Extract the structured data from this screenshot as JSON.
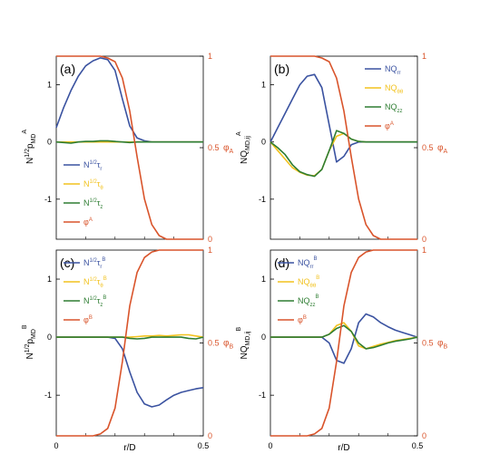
{
  "colors": {
    "s1": "#3a52a0",
    "s2": "#f2c21e",
    "s3": "#2e7d32",
    "s4": "#d9542b"
  },
  "chart_data": [
    {
      "panel": "(a)",
      "type": "line",
      "ylabel": "N1/2pMDA",
      "y2label": "φA",
      "xlabel": "",
      "xlim": [
        0,
        0.5
      ],
      "ylim": [
        -1.7,
        1.5
      ],
      "y2lim": [
        0,
        1
      ],
      "yticks": [
        "1",
        "0",
        "-1"
      ],
      "y2ticks": [
        "1",
        "0.5",
        "0"
      ],
      "xticks": [],
      "legend": [
        "N1/2τr",
        "N1/2τθ",
        "N1/2τz",
        "φA"
      ],
      "legend_position": "bottom-left",
      "x": [
        0,
        0.025,
        0.05,
        0.075,
        0.1,
        0.125,
        0.15,
        0.175,
        0.2,
        0.225,
        0.25,
        0.275,
        0.3,
        0.325,
        0.35,
        0.375,
        0.4,
        0.425,
        0.45,
        0.475,
        0.5
      ],
      "series": [
        {
          "name": "N1/2τr",
          "color": "s1",
          "axis": "left",
          "values": [
            0.25,
            0.6,
            0.9,
            1.15,
            1.33,
            1.42,
            1.47,
            1.44,
            1.25,
            0.75,
            0.28,
            0.07,
            0.02,
            0.0,
            0.0,
            0.0,
            0.0,
            0.0,
            0.0,
            0.0,
            0.0
          ]
        },
        {
          "name": "N1/2τθ",
          "color": "s2",
          "axis": "left",
          "values": [
            0,
            0,
            0,
            0,
            0,
            0,
            0,
            0,
            0,
            0,
            0,
            0,
            0,
            0,
            0,
            0,
            0,
            0,
            0,
            0,
            0
          ]
        },
        {
          "name": "N1/2τz",
          "color": "s3",
          "axis": "left",
          "values": [
            0,
            -0.01,
            -0.02,
            0.0,
            0.01,
            0.01,
            0.02,
            0.02,
            0.01,
            0.0,
            -0.01,
            0.0,
            0.0,
            0.0,
            0.0,
            0.0,
            0.0,
            0.0,
            0.0,
            0.0,
            0.0
          ]
        },
        {
          "name": "φA",
          "color": "s4",
          "axis": "right",
          "values": [
            1,
            1,
            1,
            1,
            1,
            1,
            1,
            0.99,
            0.97,
            0.88,
            0.7,
            0.45,
            0.22,
            0.08,
            0.02,
            0.0,
            0.0,
            0.0,
            0.0,
            0.0,
            0.0
          ]
        }
      ]
    },
    {
      "panel": "(b)",
      "type": "line",
      "ylabel": "NQMD,ijA",
      "y2label": "φA",
      "xlabel": "",
      "xlim": [
        0,
        0.5
      ],
      "ylim": [
        -1.7,
        1.5
      ],
      "y2lim": [
        0,
        1
      ],
      "yticks": [
        "1",
        "0",
        "-1"
      ],
      "y2ticks": [
        "1",
        "0.5",
        "0"
      ],
      "xticks": [],
      "legend": [
        "NQrr",
        "NQθθ",
        "NQzz",
        "φA"
      ],
      "legend_position": "top-right",
      "x": [
        0,
        0.025,
        0.05,
        0.075,
        0.1,
        0.125,
        0.15,
        0.175,
        0.2,
        0.225,
        0.25,
        0.275,
        0.3,
        0.325,
        0.35,
        0.375,
        0.4,
        0.425,
        0.45,
        0.475,
        0.5
      ],
      "series": [
        {
          "name": "NQrr",
          "color": "s1",
          "axis": "left",
          "values": [
            0,
            0.25,
            0.5,
            0.75,
            1.0,
            1.15,
            1.18,
            0.95,
            0.3,
            -0.35,
            -0.25,
            -0.05,
            0.0,
            0.0,
            0.0,
            0.0,
            0.0,
            0.0,
            0.0,
            0.0,
            0.0
          ]
        },
        {
          "name": "NQθθ",
          "color": "s2",
          "axis": "left",
          "values": [
            0,
            -0.15,
            -0.3,
            -0.45,
            -0.53,
            -0.58,
            -0.59,
            -0.48,
            -0.15,
            0.1,
            0.15,
            0.05,
            0.01,
            0.0,
            0.0,
            0.0,
            0.0,
            0.0,
            0.0,
            0.0,
            0.0
          ]
        },
        {
          "name": "NQzz",
          "color": "s3",
          "axis": "left",
          "values": [
            0,
            -0.1,
            -0.22,
            -0.4,
            -0.52,
            -0.57,
            -0.6,
            -0.48,
            -0.15,
            0.2,
            0.15,
            0.05,
            0.01,
            0.0,
            0.0,
            0.0,
            0.0,
            0.0,
            0.0,
            0.0,
            0.0
          ]
        },
        {
          "name": "φA",
          "color": "s4",
          "axis": "right",
          "values": [
            1,
            1,
            1,
            1,
            1,
            1,
            1,
            0.99,
            0.97,
            0.88,
            0.7,
            0.45,
            0.22,
            0.08,
            0.02,
            0.0,
            0.0,
            0.0,
            0.0,
            0.0,
            0.0
          ]
        }
      ]
    },
    {
      "panel": "(c)",
      "type": "line",
      "ylabel": "N1/2pMDB",
      "y2label": "φB",
      "xlabel": "r/D",
      "xlim": [
        0,
        0.5
      ],
      "ylim": [
        -1.7,
        1.5
      ],
      "y2lim": [
        0,
        1
      ],
      "yticks": [
        "1",
        "0",
        "-1"
      ],
      "y2ticks": [
        "1",
        "0.5",
        "0"
      ],
      "xticks": [
        "0",
        "0.5"
      ],
      "legend": [
        "N1/2τrB",
        "N1/2τθB",
        "N1/2τzB",
        "φB"
      ],
      "legend_position": "top-left",
      "x": [
        0,
        0.025,
        0.05,
        0.075,
        0.1,
        0.125,
        0.15,
        0.175,
        0.2,
        0.225,
        0.25,
        0.275,
        0.3,
        0.325,
        0.35,
        0.375,
        0.4,
        0.425,
        0.45,
        0.475,
        0.5
      ],
      "series": [
        {
          "name": "N1/2τrB",
          "color": "s1",
          "axis": "left",
          "values": [
            0,
            0,
            0,
            0,
            0,
            0,
            0,
            0,
            -0.02,
            -0.2,
            -0.6,
            -0.95,
            -1.15,
            -1.2,
            -1.17,
            -1.08,
            -1.0,
            -0.95,
            -0.92,
            -0.89,
            -0.87
          ]
        },
        {
          "name": "N1/2τθB",
          "color": "s2",
          "axis": "left",
          "values": [
            0,
            0,
            0,
            0,
            0,
            0,
            0,
            0,
            0,
            0,
            0,
            0.01,
            0.02,
            0.02,
            0.03,
            0.02,
            0.03,
            0.04,
            0.04,
            0.02,
            0.0
          ]
        },
        {
          "name": "N1/2τzB",
          "color": "s3",
          "axis": "left",
          "values": [
            0,
            0,
            0,
            0,
            0,
            0,
            0,
            0,
            0,
            0,
            -0.02,
            -0.03,
            -0.02,
            0.0,
            0.0,
            0.0,
            0.0,
            0.0,
            -0.02,
            -0.03,
            0.0
          ]
        },
        {
          "name": "φB",
          "color": "s4",
          "axis": "right",
          "values": [
            0,
            0,
            0,
            0,
            0,
            0,
            0.01,
            0.04,
            0.15,
            0.4,
            0.7,
            0.88,
            0.96,
            0.99,
            1,
            1,
            1,
            1,
            1,
            1,
            1
          ]
        }
      ]
    },
    {
      "panel": "(d)",
      "type": "line",
      "ylabel": "NQMD,ijB",
      "y2label": "φB",
      "xlabel": "r/D",
      "xlim": [
        0,
        0.5
      ],
      "ylim": [
        -1.7,
        1.5
      ],
      "y2lim": [
        0,
        1
      ],
      "yticks": [
        "1",
        "0",
        "-1"
      ],
      "y2ticks": [
        "1",
        "0.5",
        "0"
      ],
      "xticks": [
        "0",
        "0.5"
      ],
      "legend": [
        "NQrrB",
        "NQθθB",
        "NQzzB",
        "φB"
      ],
      "legend_position": "top-left",
      "x": [
        0,
        0.025,
        0.05,
        0.075,
        0.1,
        0.125,
        0.15,
        0.175,
        0.2,
        0.225,
        0.25,
        0.275,
        0.3,
        0.325,
        0.35,
        0.375,
        0.4,
        0.425,
        0.45,
        0.475,
        0.5
      ],
      "series": [
        {
          "name": "NQrrB",
          "color": "s1",
          "axis": "left",
          "values": [
            0,
            0,
            0,
            0,
            0,
            0,
            0,
            0,
            -0.1,
            -0.4,
            -0.45,
            -0.2,
            0.25,
            0.4,
            0.35,
            0.25,
            0.18,
            0.12,
            0.08,
            0.04,
            0.0
          ]
        },
        {
          "name": "NQθθB",
          "color": "s2",
          "axis": "left",
          "values": [
            0,
            0,
            0,
            0,
            0,
            0,
            0,
            0,
            0.05,
            0.2,
            0.25,
            0.1,
            -0.15,
            -0.2,
            -0.16,
            -0.12,
            -0.09,
            -0.06,
            -0.04,
            -0.02,
            0.0
          ]
        },
        {
          "name": "NQzzB",
          "color": "s3",
          "axis": "left",
          "values": [
            0,
            0,
            0,
            0,
            0,
            0,
            0,
            0,
            0.05,
            0.15,
            0.2,
            0.1,
            -0.1,
            -0.2,
            -0.18,
            -0.14,
            -0.1,
            -0.07,
            -0.05,
            -0.03,
            0.0
          ]
        },
        {
          "name": "φB",
          "color": "s4",
          "axis": "right",
          "values": [
            0,
            0,
            0,
            0,
            0,
            0,
            0.01,
            0.04,
            0.15,
            0.4,
            0.7,
            0.88,
            0.96,
            0.99,
            1,
            1,
            1,
            1,
            1,
            1,
            1
          ]
        }
      ]
    }
  ]
}
